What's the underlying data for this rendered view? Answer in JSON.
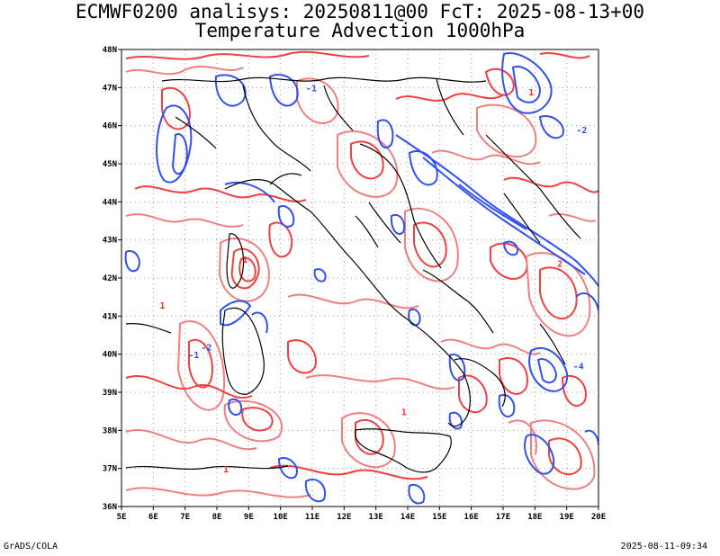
{
  "title_line1": "ECMWF0200 analisys: 20250811@00 FcT: 2025-08-13+00",
  "title_line2": "Temperature Advection 1000hPa",
  "footer_left": "GrADS/COLA",
  "footer_right": "2025-08-11-09:34",
  "lon_labels": [
    "5E",
    "6E",
    "7E",
    "8E",
    "9E",
    "10E",
    "11E",
    "12E",
    "13E",
    "14E",
    "15E",
    "16E",
    "17E",
    "18E",
    "19E",
    "20E"
  ],
  "lat_labels": [
    "48N",
    "47N",
    "46N",
    "45N",
    "44N",
    "43N",
    "42N",
    "41N",
    "40N",
    "39N",
    "38N",
    "37N",
    "36N"
  ],
  "contour_labels": [
    {
      "text": "-1",
      "lon": 10.8,
      "lat": 46.9,
      "color": "#3050f0"
    },
    {
      "text": "-2",
      "lon": 19.3,
      "lat": 45.8,
      "color": "#3050f0"
    },
    {
      "text": "-4",
      "lon": 19.2,
      "lat": 39.6,
      "color": "#3050f0"
    },
    {
      "text": "-1",
      "lon": 7.1,
      "lat": 39.9,
      "color": "#3050f0"
    },
    {
      "text": "-2",
      "lon": 7.5,
      "lat": 40.1,
      "color": "#3050f0"
    },
    {
      "text": "1",
      "lon": 6.2,
      "lat": 41.2,
      "color": "#f03030"
    },
    {
      "text": "1",
      "lon": 17.8,
      "lat": 46.8,
      "color": "#f03030"
    },
    {
      "text": "1",
      "lon": 8.2,
      "lat": 36.9,
      "color": "#f03030"
    },
    {
      "text": "1",
      "lon": 13.8,
      "lat": 38.4,
      "color": "#f03030"
    },
    {
      "text": "2",
      "lon": 18.7,
      "lat": 42.3,
      "color": "#f03030"
    },
    {
      "text": "1",
      "lon": 8.8,
      "lat": 42.4,
      "color": "#f03030"
    }
  ],
  "colors": {
    "positive": "#f03030",
    "positive_light": "#f08080",
    "negative": "#3050f0",
    "coast": "#000000",
    "grid": "#a0a0a0"
  },
  "map": {
    "lon_range": [
      5,
      20
    ],
    "lat_range": [
      36,
      48
    ],
    "grid": "dotted every 1 degree"
  }
}
